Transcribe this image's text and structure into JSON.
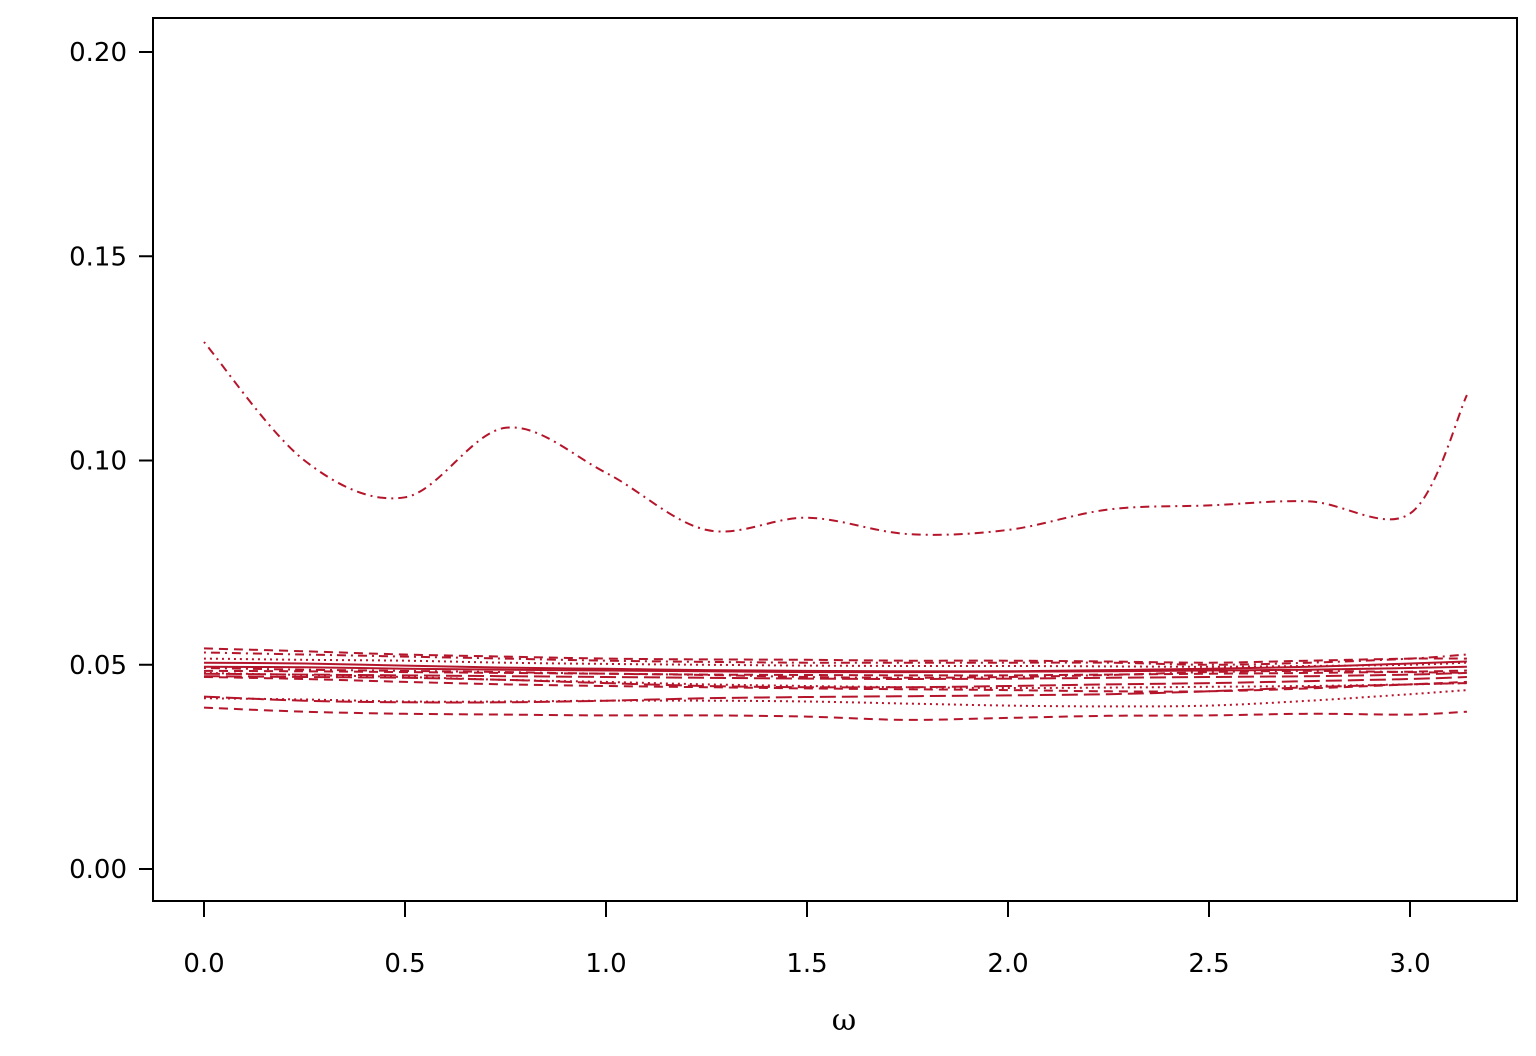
{
  "chart_data": {
    "type": "line",
    "xlabel": "ω",
    "ylabel": "",
    "xlim": [
      0,
      3.14159
    ],
    "ylim": [
      0,
      0.2
    ],
    "x_ticks": [
      "0.0",
      "0.5",
      "1.0",
      "1.5",
      "2.0",
      "2.5",
      "3.0"
    ],
    "y_ticks": [
      "0.00",
      "0.05",
      "0.10",
      "0.15",
      "0.20"
    ],
    "grid": false,
    "legend": "none",
    "line_color": "#B5152B",
    "x": [
      0,
      0.25,
      0.5,
      0.75,
      1.0,
      1.25,
      1.5,
      1.75,
      2.0,
      2.25,
      2.5,
      2.75,
      3.0,
      3.14159
    ],
    "series": [
      {
        "dash": "dashdot",
        "values": [
          0.129,
          0.1,
          0.091,
          0.108,
          0.097,
          0.083,
          0.086,
          0.082,
          0.083,
          0.088,
          0.089,
          0.09,
          0.087,
          0.116
        ]
      },
      {
        "dash": "solid",
        "values": [
          0.0505,
          0.0503,
          0.0498,
          0.0493,
          0.049,
          0.0487,
          0.0485,
          0.0484,
          0.0484,
          0.0487,
          0.049,
          0.0495,
          0.0503,
          0.0508
        ]
      },
      {
        "dash": "solid",
        "values": [
          0.0495,
          0.0494,
          0.049,
          0.0488,
          0.0486,
          0.0484,
          0.0482,
          0.0482,
          0.0483,
          0.0484,
          0.0486,
          0.0488,
          0.0492,
          0.0495
        ]
      },
      {
        "dash": "dashed",
        "values": [
          0.054,
          0.0533,
          0.0525,
          0.052,
          0.0515,
          0.0513,
          0.0512,
          0.051,
          0.051,
          0.0508,
          0.0505,
          0.051,
          0.0515,
          0.0515
        ]
      },
      {
        "dash": "dashdot",
        "values": [
          0.053,
          0.0525,
          0.052,
          0.0515,
          0.051,
          0.0507,
          0.0505,
          0.0505,
          0.0505,
          0.0505,
          0.05,
          0.0505,
          0.0515,
          0.0525
        ]
      },
      {
        "dash": "dotted",
        "values": [
          0.0515,
          0.0512,
          0.051,
          0.0505,
          0.0502,
          0.05,
          0.0498,
          0.0497,
          0.0497,
          0.0496,
          0.0495,
          0.0497,
          0.05,
          0.0505
        ]
      },
      {
        "dash": "dashed",
        "values": [
          0.0485,
          0.0484,
          0.0482,
          0.048,
          0.0478,
          0.0476,
          0.0475,
          0.0474,
          0.0474,
          0.0476,
          0.0478,
          0.048,
          0.0483,
          0.0486
        ]
      },
      {
        "dash": "longdash",
        "values": [
          0.0478,
          0.0476,
          0.0474,
          0.0472,
          0.047,
          0.0468,
          0.0466,
          0.0465,
          0.0466,
          0.0468,
          0.047,
          0.0472,
          0.0476,
          0.048
        ]
      },
      {
        "dash": "dotted",
        "values": [
          0.048,
          0.0475,
          0.047,
          0.0463,
          0.0458,
          0.0452,
          0.0448,
          0.0445,
          0.0443,
          0.0444,
          0.0446,
          0.0448,
          0.0452,
          0.0455
        ]
      },
      {
        "dash": "dashdot",
        "values": [
          0.0492,
          0.0488,
          0.0485,
          0.0482,
          0.0478,
          0.0475,
          0.047,
          0.0468,
          0.047,
          0.0475,
          0.0482,
          0.0485,
          0.0482,
          0.048
        ]
      },
      {
        "dash": "longdash",
        "values": [
          0.0472,
          0.047,
          0.0468,
          0.0463,
          0.0455,
          0.0448,
          0.0445,
          0.0445,
          0.0448,
          0.0452,
          0.0455,
          0.046,
          0.0465,
          0.047
        ]
      },
      {
        "dash": "dashed",
        "values": [
          0.047,
          0.0465,
          0.0458,
          0.0452,
          0.0448,
          0.0445,
          0.0442,
          0.044,
          0.0438,
          0.0435,
          0.0435,
          0.0442,
          0.0452,
          0.0458
        ]
      },
      {
        "dash": "longdash",
        "values": [
          0.0422,
          0.0412,
          0.0408,
          0.0408,
          0.0412,
          0.0418,
          0.0421,
          0.0423,
          0.0425,
          0.0428,
          0.0435,
          0.0445,
          0.0452,
          0.0455
        ]
      },
      {
        "dash": "dotted",
        "values": [
          0.0418,
          0.0415,
          0.041,
          0.041,
          0.0412,
          0.0412,
          0.041,
          0.0405,
          0.04,
          0.0398,
          0.04,
          0.0412,
          0.0428,
          0.0438
        ]
      },
      {
        "dash": "dashed",
        "values": [
          0.0395,
          0.0385,
          0.038,
          0.0378,
          0.0376,
          0.0376,
          0.0373,
          0.0365,
          0.037,
          0.0375,
          0.0376,
          0.038,
          0.0378,
          0.0385
        ]
      }
    ]
  }
}
